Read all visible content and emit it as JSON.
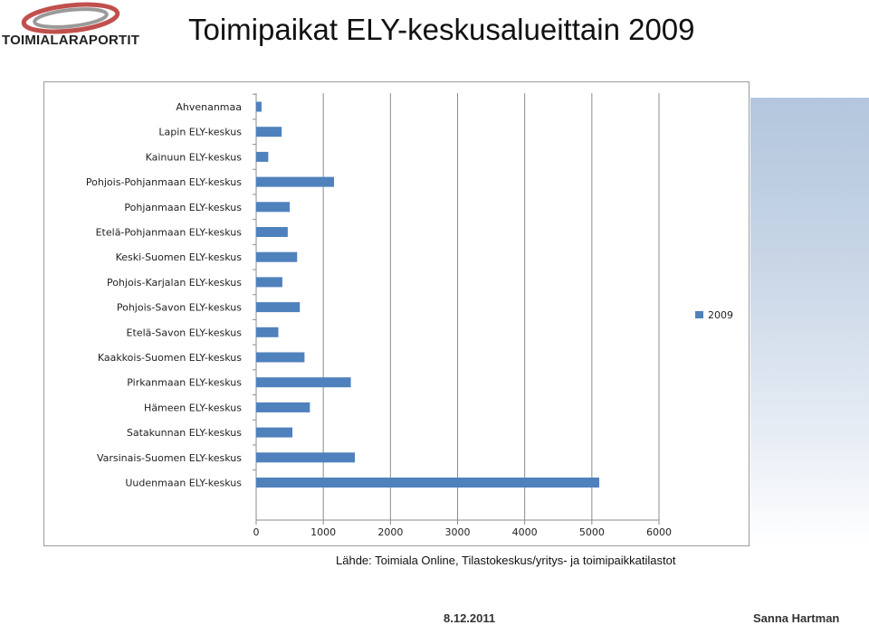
{
  "logo": {
    "text": "TOIMIALARAPORTIT"
  },
  "header": {
    "title": "Toimipaikat ELY-keskusalueittain 2009"
  },
  "chart_data": {
    "type": "bar",
    "orientation": "horizontal",
    "title": "",
    "xlabel": "",
    "ylabel": "",
    "categories": [
      "Ahvenanmaa",
      "Lapin ELY-keskus",
      "Kainuun ELY-keskus",
      "Pohjois-Pohjanmaan ELY-keskus",
      "Pohjanmaan ELY-keskus",
      "Etelä-Pohjanmaan ELY-keskus",
      "Keski-Suomen ELY-keskus",
      "Pohjois-Karjalan ELY-keskus",
      "Pohjois-Savon ELY-keskus",
      "Etelä-Savon ELY-keskus",
      "Kaakkois-Suomen ELY-keskus",
      "Pirkanmaan ELY-keskus",
      "Hämeen ELY-keskus",
      "Satakunnan ELY-keskus",
      "Varsinais-Suomen ELY-keskus",
      "Uudenmaan ELY-keskus"
    ],
    "series": [
      {
        "name": "2009",
        "color": "#4f81bd",
        "values": [
          80,
          380,
          180,
          1160,
          500,
          470,
          610,
          390,
          650,
          330,
          720,
          1410,
          800,
          540,
          1470,
          5110
        ]
      }
    ],
    "xlim": [
      0,
      6000
    ],
    "xticks": [
      0,
      1000,
      2000,
      3000,
      4000,
      5000,
      6000
    ],
    "grid": "vertical",
    "legend_position": "right"
  },
  "source_text": "Lähde: Toimiala Online, Tilastokeskus/yritys- ja toimipaikkatilastot",
  "footer": {
    "date": "8.12.2011",
    "author": "Sanna Hartman"
  }
}
